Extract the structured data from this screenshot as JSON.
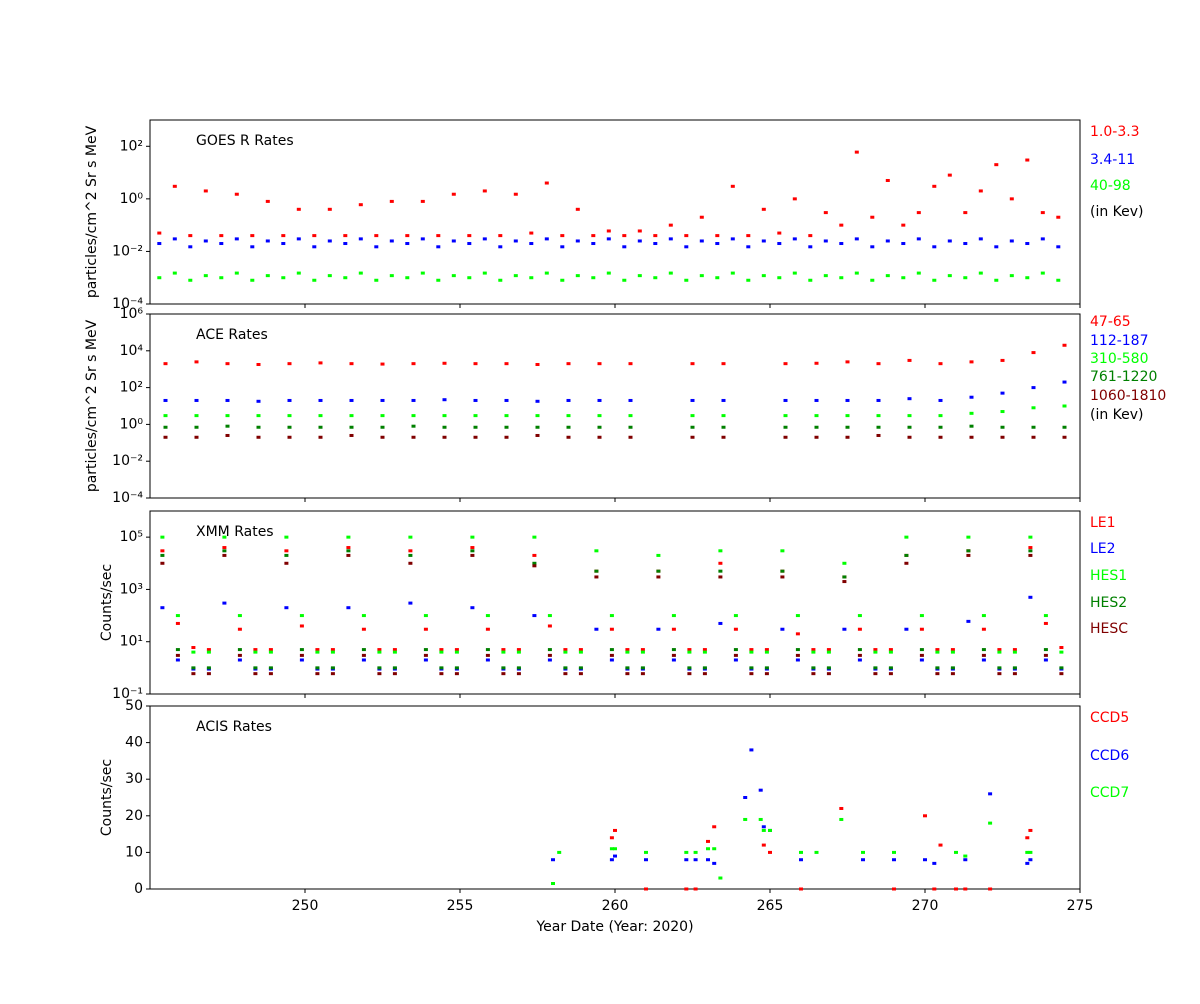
{
  "chart_data": [
    {
      "type": "scatter",
      "title": "GOES R Rates",
      "y_label": "particles/cm^2 Sr s MeV",
      "log_y": true,
      "xlim": [
        245,
        275
      ],
      "ylim": [
        0.0001,
        1000
      ],
      "yticks": [
        {
          "value": 0.0001,
          "label": "10⁻⁴"
        },
        {
          "value": 0.01,
          "label": "10⁻²"
        },
        {
          "value": 1,
          "label": "10⁰"
        },
        {
          "value": 100,
          "label": "10²"
        }
      ],
      "legend_note": "(in Kev)",
      "x": [
        245.3,
        245.8,
        246.3,
        246.8,
        247.3,
        247.8,
        248.3,
        248.8,
        249.3,
        249.8,
        250.3,
        250.8,
        251.3,
        251.8,
        252.3,
        252.8,
        253.3,
        253.8,
        254.3,
        254.8,
        255.3,
        255.8,
        256.3,
        256.8,
        257.3,
        257.8,
        258.3,
        258.8,
        259.3,
        259.8,
        260.3,
        260.8,
        261.3,
        261.8,
        262.3,
        262.8,
        263.3,
        263.8,
        264.3,
        264.8,
        265.3,
        265.8,
        266.3,
        266.8,
        267.3,
        267.8,
        268.3,
        268.8,
        269.3,
        269.8,
        270.3,
        270.8,
        271.3,
        271.8,
        272.3,
        272.8,
        273.3,
        273.8,
        274.3
      ],
      "series": [
        {
          "name": "1.0-3.3",
          "color": "#ff0000",
          "values": [
            0.05,
            3,
            0.04,
            2,
            0.04,
            1.5,
            0.04,
            0.8,
            0.04,
            0.4,
            0.04,
            0.4,
            0.04,
            0.6,
            0.04,
            0.8,
            0.04,
            0.8,
            0.04,
            1.5,
            0.04,
            2,
            0.04,
            1.5,
            0.05,
            4,
            0.04,
            0.4,
            0.04,
            0.06,
            0.04,
            0.06,
            0.04,
            0.1,
            0.04,
            0.2,
            0.04,
            3,
            0.04,
            0.4,
            0.05,
            1,
            0.04,
            0.3,
            0.1,
            60,
            0.2,
            5,
            0.1,
            0.3,
            3,
            8,
            0.3,
            2,
            20,
            1,
            30,
            0.3,
            0.2
          ]
        },
        {
          "name": "3.4-11",
          "color": "#0000ff",
          "values": [
            0.02,
            0.03,
            0.015,
            0.025,
            0.02,
            0.03,
            0.015,
            0.025,
            0.02,
            0.03,
            0.015,
            0.025,
            0.02,
            0.03,
            0.015,
            0.025,
            0.02,
            0.03,
            0.015,
            0.025,
            0.02,
            0.03,
            0.015,
            0.025,
            0.02,
            0.03,
            0.015,
            0.025,
            0.02,
            0.03,
            0.015,
            0.025,
            0.02,
            0.03,
            0.015,
            0.025,
            0.02,
            0.03,
            0.015,
            0.025,
            0.02,
            0.03,
            0.015,
            0.025,
            0.02,
            0.03,
            0.015,
            0.025,
            0.02,
            0.03,
            0.015,
            0.025,
            0.02,
            0.03,
            0.015,
            0.025,
            0.02,
            0.03,
            0.015
          ]
        },
        {
          "name": "40-98",
          "color": "#00ff00",
          "values": [
            0.001,
            0.0015,
            0.0008,
            0.0012,
            0.001,
            0.0015,
            0.0008,
            0.0012,
            0.001,
            0.0015,
            0.0008,
            0.0012,
            0.001,
            0.0015,
            0.0008,
            0.0012,
            0.001,
            0.0015,
            0.0008,
            0.0012,
            0.001,
            0.0015,
            0.0008,
            0.0012,
            0.001,
            0.0015,
            0.0008,
            0.0012,
            0.001,
            0.0015,
            0.0008,
            0.0012,
            0.001,
            0.0015,
            0.0008,
            0.0012,
            0.001,
            0.0015,
            0.0008,
            0.0012,
            0.001,
            0.0015,
            0.0008,
            0.0012,
            0.001,
            0.0015,
            0.0008,
            0.0012,
            0.001,
            0.0015,
            0.0008,
            0.0012,
            0.001,
            0.0015,
            0.0008,
            0.0012,
            0.001,
            0.0015,
            0.0008
          ]
        }
      ]
    },
    {
      "type": "scatter",
      "title": "ACE Rates",
      "y_label": "particles/cm^2 Sr s MeV",
      "log_y": true,
      "xlim": [
        245,
        275
      ],
      "ylim": [
        0.0001,
        1000000
      ],
      "yticks": [
        {
          "value": 0.0001,
          "label": "10⁻⁴"
        },
        {
          "value": 0.01,
          "label": "10⁻²"
        },
        {
          "value": 1,
          "label": "10⁰"
        },
        {
          "value": 100,
          "label": "10²"
        },
        {
          "value": 10000,
          "label": "10⁴"
        },
        {
          "value": 1000000,
          "label": "10⁶"
        }
      ],
      "legend_note": "(in Kev)",
      "x": [
        245.5,
        246.5,
        247.5,
        248.5,
        249.5,
        250.5,
        251.5,
        252.5,
        253.5,
        254.5,
        255.5,
        256.5,
        257.5,
        258.5,
        259.5,
        260.5,
        261.5,
        262.5,
        263.5,
        264.5,
        265.5,
        266.5,
        267.5,
        268.5,
        269.5,
        270.5,
        271.5,
        272.5,
        273.5,
        274.5
      ],
      "series": [
        {
          "name": "47-65",
          "color": "#ff0000",
          "values": [
            2000,
            2500,
            2000,
            1800,
            2000,
            2200,
            2000,
            1900,
            2000,
            2100,
            2000,
            2000,
            1800,
            2000,
            2000,
            2000,
            null,
            2000,
            2000,
            null,
            2000,
            2100,
            2500,
            2000,
            3000,
            2000,
            2500,
            3000,
            8000,
            20000
          ]
        },
        {
          "name": "112-187",
          "color": "#0000ff",
          "values": [
            20,
            20,
            20,
            18,
            20,
            20,
            20,
            20,
            20,
            22,
            20,
            20,
            18,
            20,
            20,
            20,
            null,
            20,
            20,
            null,
            20,
            20,
            20,
            20,
            25,
            20,
            30,
            50,
            100,
            200
          ]
        },
        {
          "name": "310-580",
          "color": "#00ff00",
          "values": [
            3,
            3,
            3,
            3,
            3,
            3,
            3,
            3,
            3,
            3,
            3,
            3,
            3,
            3,
            3,
            3,
            null,
            3,
            3,
            null,
            3,
            3,
            3,
            3,
            3,
            3,
            4,
            5,
            8,
            10
          ]
        },
        {
          "name": "761-1220",
          "color": "#008000",
          "values": [
            0.7,
            0.7,
            0.8,
            0.7,
            0.7,
            0.7,
            0.7,
            0.7,
            0.8,
            0.7,
            0.7,
            0.7,
            0.7,
            0.7,
            0.7,
            0.7,
            null,
            0.7,
            0.7,
            null,
            0.7,
            0.7,
            0.7,
            0.7,
            0.7,
            0.7,
            0.8,
            0.7,
            0.7,
            0.7
          ]
        },
        {
          "name": "1060-1810",
          "color": "#800000",
          "values": [
            0.2,
            0.2,
            0.25,
            0.2,
            0.2,
            0.2,
            0.25,
            0.2,
            0.2,
            0.2,
            0.2,
            0.2,
            0.25,
            0.2,
            0.2,
            0.2,
            null,
            0.2,
            0.2,
            null,
            0.2,
            0.2,
            0.2,
            0.25,
            0.2,
            0.2,
            0.2,
            0.2,
            0.2,
            0.2
          ]
        }
      ]
    },
    {
      "type": "scatter",
      "title": "XMM Rates",
      "y_label": "Counts/sec",
      "log_y": true,
      "xlim": [
        245,
        275
      ],
      "ylim": [
        0.1,
        1000000
      ],
      "yticks": [
        {
          "value": 0.1,
          "label": "10⁻¹"
        },
        {
          "value": 10,
          "label": "10¹"
        },
        {
          "value": 1000,
          "label": "10³"
        },
        {
          "value": 100000,
          "label": "10⁵"
        }
      ],
      "x": [
        245.4,
        245.9,
        246.4,
        246.9,
        247.4,
        247.9,
        248.4,
        248.9,
        249.4,
        249.9,
        250.4,
        250.9,
        251.4,
        251.9,
        252.4,
        252.9,
        253.4,
        253.9,
        254.4,
        254.9,
        255.4,
        255.9,
        256.4,
        256.9,
        257.4,
        257.9,
        258.4,
        258.9,
        259.4,
        259.9,
        260.4,
        260.9,
        261.4,
        261.9,
        262.4,
        262.9,
        263.4,
        263.9,
        264.4,
        264.9,
        265.4,
        265.9,
        266.4,
        266.9,
        267.4,
        267.9,
        268.4,
        268.9,
        269.4,
        269.9,
        270.4,
        270.9,
        271.4,
        271.9,
        272.4,
        272.9,
        273.4,
        273.9,
        274.4
      ],
      "series": [
        {
          "name": "LE1",
          "color": "#ff0000",
          "values": [
            30000,
            50,
            6,
            5,
            40000,
            30,
            5,
            5,
            30000,
            40,
            5,
            5,
            40000,
            30,
            5,
            5,
            30000,
            30,
            5,
            5,
            40000,
            30,
            5,
            5,
            20000,
            40,
            5,
            5,
            5000,
            30,
            5,
            5,
            5000,
            30,
            5,
            5,
            10000,
            30,
            5,
            5,
            5000,
            20,
            5,
            5,
            3000,
            30,
            5,
            5,
            20000,
            30,
            5,
            5,
            30000,
            30,
            5,
            5,
            40000,
            50,
            6
          ]
        },
        {
          "name": "LE2",
          "color": "#0000ff",
          "values": [
            200,
            2,
            0.9,
            0.9,
            300,
            2,
            0.9,
            0.9,
            200,
            2,
            0.9,
            0.9,
            200,
            2,
            0.9,
            0.9,
            300,
            2,
            0.9,
            0.9,
            200,
            2,
            0.9,
            0.9,
            100,
            2,
            0.9,
            0.9,
            30,
            2,
            0.9,
            0.9,
            30,
            2,
            0.9,
            0.9,
            50,
            2,
            0.9,
            0.9,
            30,
            2,
            0.9,
            0.9,
            30,
            2,
            0.9,
            0.9,
            30,
            2,
            0.9,
            0.9,
            60,
            2,
            0.9,
            0.9,
            500,
            2,
            0.9
          ]
        },
        {
          "name": "HES1",
          "color": "#00ff00",
          "values": [
            100000,
            100,
            4,
            4,
            100000,
            100,
            4,
            4,
            100000,
            100,
            4,
            4,
            100000,
            100,
            4,
            4,
            100000,
            100,
            4,
            4,
            100000,
            100,
            4,
            4,
            100000,
            100,
            4,
            4,
            30000,
            100,
            4,
            4,
            20000,
            100,
            4,
            4,
            30000,
            100,
            4,
            4,
            30000,
            100,
            4,
            4,
            10000,
            100,
            4,
            4,
            100000,
            100,
            4,
            4,
            100000,
            100,
            4,
            4,
            100000,
            100,
            4
          ]
        },
        {
          "name": "HES2",
          "color": "#008000",
          "values": [
            20000,
            5,
            1,
            1,
            30000,
            5,
            1,
            1,
            20000,
            5,
            1,
            1,
            30000,
            5,
            1,
            1,
            20000,
            5,
            1,
            1,
            30000,
            5,
            1,
            1,
            10000,
            5,
            1,
            1,
            5000,
            5,
            1,
            1,
            5000,
            5,
            1,
            1,
            5000,
            5,
            1,
            1,
            5000,
            5,
            1,
            1,
            3000,
            5,
            1,
            1,
            20000,
            5,
            1,
            1,
            30000,
            5,
            1,
            1,
            30000,
            5,
            1
          ]
        },
        {
          "name": "HESC",
          "color": "#800000",
          "values": [
            10000,
            3,
            0.6,
            0.6,
            20000,
            3,
            0.6,
            0.6,
            10000,
            3,
            0.6,
            0.6,
            20000,
            3,
            0.6,
            0.6,
            10000,
            3,
            0.6,
            0.6,
            20000,
            3,
            0.6,
            0.6,
            8000,
            3,
            0.6,
            0.6,
            3000,
            3,
            0.6,
            0.6,
            3000,
            3,
            0.6,
            0.6,
            3000,
            3,
            0.6,
            0.6,
            3000,
            3,
            0.6,
            0.6,
            2000,
            3,
            0.6,
            0.6,
            10000,
            3,
            0.6,
            0.6,
            20000,
            3,
            0.6,
            0.6,
            20000,
            3,
            0.6
          ]
        }
      ]
    },
    {
      "type": "scatter",
      "title": "ACIS Rates",
      "y_label": "Counts/sec",
      "x_label": "Year Date (Year: 2020)",
      "log_y": false,
      "xlim": [
        245,
        275
      ],
      "xticks": [
        250,
        255,
        260,
        265,
        270,
        275
      ],
      "ylim": [
        0,
        50
      ],
      "yticks": [
        0,
        10,
        20,
        30,
        40,
        50
      ],
      "x": [
        258.0,
        258.2,
        259.9,
        260.0,
        261.0,
        262.3,
        262.6,
        263.0,
        263.2,
        263.4,
        264.2,
        264.4,
        264.7,
        264.8,
        265.0,
        266.0,
        266.5,
        267.3,
        268.0,
        269.0,
        270.0,
        270.3,
        270.5,
        271.0,
        271.3,
        272.1,
        273.3,
        273.4
      ],
      "series": [
        {
          "name": "CCD5",
          "color": "#ff0000",
          "values": [
            null,
            null,
            14,
            16,
            0,
            0,
            0,
            13,
            17,
            null,
            null,
            null,
            null,
            12,
            10,
            0,
            null,
            22,
            null,
            0,
            20,
            0,
            12,
            0,
            0,
            0,
            14,
            16
          ]
        },
        {
          "name": "CCD6",
          "color": "#0000ff",
          "values": [
            8,
            null,
            8,
            9,
            8,
            8,
            8,
            8,
            7,
            null,
            25,
            38,
            27,
            17,
            16,
            8,
            null,
            null,
            8,
            8,
            8,
            7,
            null,
            null,
            8,
            26,
            7,
            8
          ]
        },
        {
          "name": "CCD7",
          "color": "#00ff00",
          "values": [
            1.5,
            10,
            11,
            11,
            10,
            10,
            10,
            11,
            11,
            3,
            19,
            null,
            19,
            16,
            16,
            10,
            10,
            19,
            10,
            10,
            null,
            null,
            null,
            10,
            9,
            18,
            10,
            10
          ]
        }
      ]
    }
  ]
}
